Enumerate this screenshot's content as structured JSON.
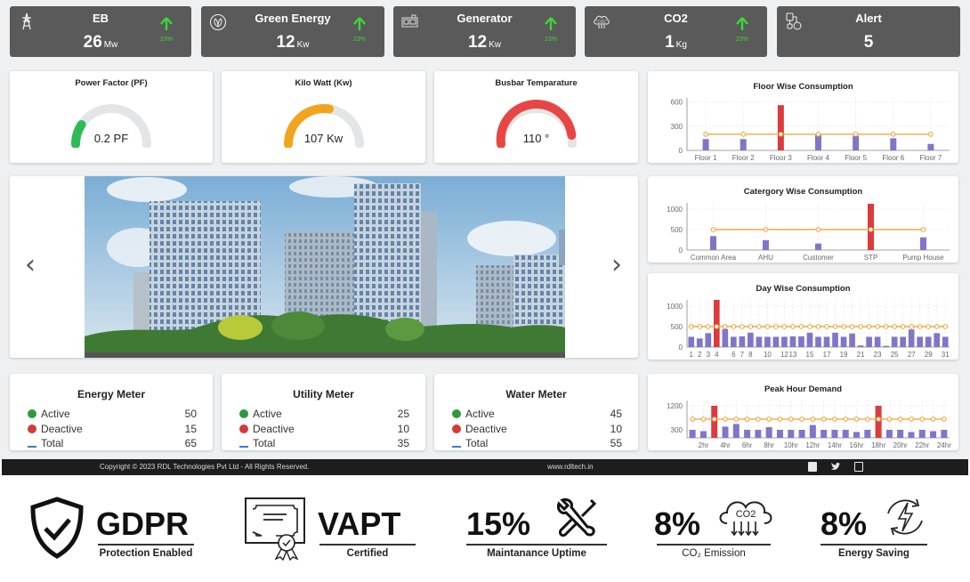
{
  "kpis": [
    {
      "title": "EB",
      "value": "26",
      "unit": "Mw",
      "trend": "23%",
      "icon": "transmission-tower-icon"
    },
    {
      "title": "Green Energy",
      "value": "12",
      "unit": "Kw",
      "trend": "23%",
      "icon": "leaf-cycle-icon"
    },
    {
      "title": "Generator",
      "value": "12",
      "unit": "Kw",
      "trend": "23%",
      "icon": "generator-icon"
    },
    {
      "title": "CO2",
      "value": "1",
      "unit": "Kg",
      "trend": "23%",
      "icon": "co2-cloud-icon"
    },
    {
      "title": "Alert",
      "value": "5",
      "unit": "",
      "icon": "alert-device-icon"
    }
  ],
  "gauges": [
    {
      "title": "Power Factor (PF)",
      "value": "0.2 PF",
      "fraction": 0.18,
      "color": "#2dbb55"
    },
    {
      "title": "Kilo Watt (Kw)",
      "value": "107 Kw",
      "fraction": 0.55,
      "color": "#f2a51c"
    },
    {
      "title": "Busbar Temparature",
      "value": "110 °",
      "fraction": 0.92,
      "color": "#e84545"
    }
  ],
  "carousel": {
    "prev": "‹",
    "next": "›",
    "image_alt": "Office buildings with greenery"
  },
  "meters": [
    {
      "title": "Energy Meter",
      "active_label": "Active",
      "active": "50",
      "deactive_label": "Deactive",
      "deactive": "15",
      "total_label": "Total",
      "total": "65"
    },
    {
      "title": "Utility Meter",
      "active_label": "Active",
      "active": "25",
      "deactive_label": "Deactive",
      "deactive": "10",
      "total_label": "Total",
      "total": "35"
    },
    {
      "title": "Water Meter",
      "active_label": "Active",
      "active": "45",
      "deactive_label": "Deactive",
      "deactive": "10",
      "total_label": "Total",
      "total": "55"
    }
  ],
  "footer": {
    "copyright": "Copyright © 2023 RDL Technologies Pvt Ltd - All Rights Reserved.",
    "website": "www.rdltech.in",
    "social": [
      "facebook",
      "twitter",
      "linkedin"
    ]
  },
  "badges": [
    {
      "big": "GDPR",
      "sub": "Protection Enabled",
      "icon": "shield-check-icon"
    },
    {
      "big": "VAPT",
      "sub": "Certified",
      "icon": "certificate-icon"
    },
    {
      "big": "15%",
      "sub": "Maintanance Uptime",
      "icon": "wrench-tools-icon"
    },
    {
      "big": "8%",
      "sub": "CO₂ Emission",
      "icon": "co2-cloud-down-icon"
    },
    {
      "big": "8%",
      "sub": "Energy Saving",
      "icon": "energy-cycle-icon"
    }
  ],
  "colors": {
    "bar": "#8075c9",
    "highlight": "#dc3b3b",
    "line": "#f0a030",
    "kpi_bg": "#5a5a5a",
    "trend": "#3bd63b"
  },
  "chart_data": [
    {
      "type": "bar",
      "title": "Floor Wise Consumption",
      "categories": [
        "Floor 1",
        "Floor 2",
        "Floor 3",
        "Floor 4",
        "Floor 5",
        "Floor 6",
        "Floor 7"
      ],
      "values": [
        140,
        140,
        560,
        190,
        180,
        150,
        80
      ],
      "highlight": [
        2
      ],
      "threshold": 200,
      "yticks": [
        0,
        300,
        600
      ],
      "ylim": [
        0,
        650
      ],
      "xlabels": [
        "Floor 1",
        "Floor 2",
        "Floor 3",
        "Floor 4",
        "Floor 5",
        "Floor 6",
        "Floor 7"
      ]
    },
    {
      "type": "bar",
      "title": "Catergory Wise Consumption",
      "categories": [
        "Common Area",
        "AHU",
        "Customer",
        "STP",
        "Pump House"
      ],
      "values": [
        340,
        240,
        160,
        1130,
        310
      ],
      "highlight": [
        3
      ],
      "threshold": 500,
      "yticks": [
        0,
        500,
        1000
      ],
      "ylim": [
        0,
        1150
      ],
      "xlabels": [
        "Common Area",
        "AHU",
        "Customer",
        "STP",
        "Pump House"
      ]
    },
    {
      "type": "bar",
      "title": "Day Wise Consumption",
      "categories": [
        "1",
        "2",
        "3",
        "4",
        "5",
        "6",
        "7",
        "8",
        "9",
        "10",
        "11",
        "12",
        "13",
        "14",
        "15",
        "16",
        "17",
        "18",
        "19",
        "20",
        "21",
        "22",
        "23",
        "24",
        "25",
        "26",
        "27",
        "28",
        "29",
        "30",
        "31"
      ],
      "values": [
        250,
        210,
        340,
        1150,
        440,
        250,
        260,
        350,
        250,
        250,
        250,
        250,
        260,
        260,
        350,
        250,
        250,
        350,
        250,
        330,
        40,
        250,
        250,
        30,
        250,
        250,
        430,
        250,
        250,
        340,
        250
      ],
      "highlight": [
        3
      ],
      "threshold": 500,
      "yticks": [
        0,
        500,
        1000
      ],
      "ylim": [
        0,
        1150
      ],
      "xlabels": [
        "1",
        "2",
        "3",
        "4",
        "6",
        "7",
        "8",
        "10",
        "12",
        "13",
        "15",
        "17",
        "19",
        "21",
        "23",
        "25",
        "27",
        "29",
        "31"
      ]
    },
    {
      "type": "bar",
      "title": "Peak Hour Demand",
      "categories": [
        "1hr",
        "2hr",
        "3hr",
        "4hr",
        "5hr",
        "6hr",
        "7hr",
        "8hr",
        "9hr",
        "10hr",
        "11hr",
        "12hr",
        "13hr",
        "14hr",
        "15hr",
        "16hr",
        "17hr",
        "18hr",
        "19hr",
        "20hr",
        "21hr",
        "22hr",
        "23hr",
        "24hr"
      ],
      "values": [
        300,
        250,
        1200,
        420,
        520,
        300,
        300,
        400,
        300,
        300,
        300,
        480,
        300,
        300,
        300,
        220,
        300,
        1200,
        300,
        300,
        220,
        300,
        250,
        300
      ],
      "highlight": [
        2,
        17
      ],
      "threshold": 700,
      "yticks": [
        300,
        1200
      ],
      "ylim": [
        0,
        1400
      ],
      "xlabels": [
        "2hr",
        "4hr",
        "6hr",
        "8hr",
        "10hr",
        "12hr",
        "14hr",
        "16hr",
        "18hr",
        "20hr",
        "22hr",
        "24hr"
      ]
    }
  ]
}
